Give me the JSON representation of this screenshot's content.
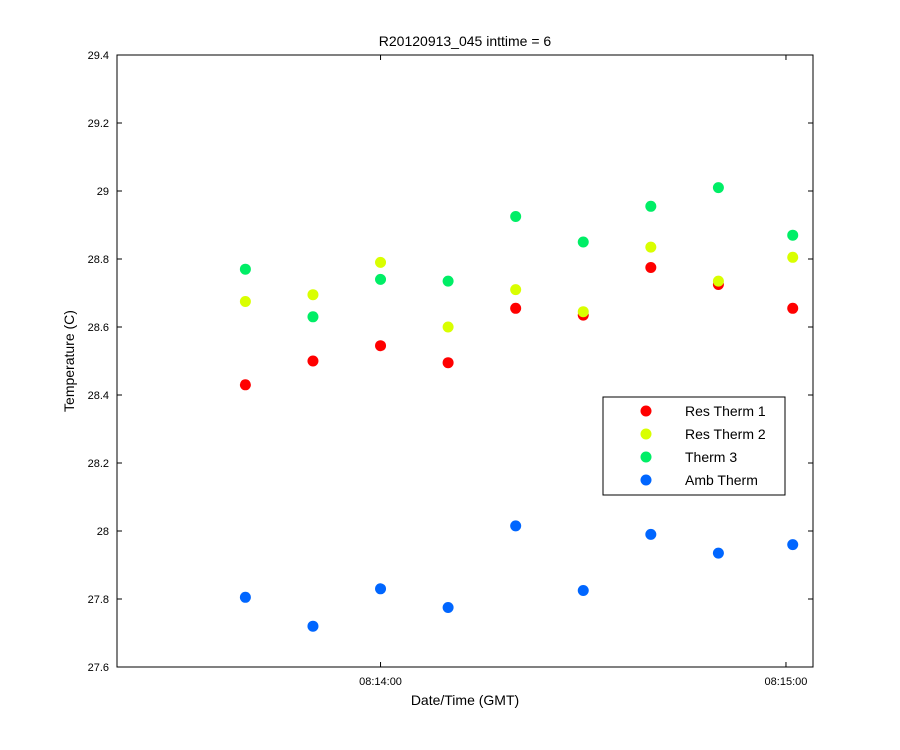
{
  "chart_data": {
    "type": "scatter",
    "title": "R20120913_045 inttime = 6",
    "xlabel": "Date/Time (GMT)",
    "ylabel": "Temperature (C)",
    "x_tick_labels": [
      "08:14:00",
      "08:15:00"
    ],
    "y_tick_labels": [
      "27.6",
      "27.8",
      "28",
      "28.2",
      "28.4",
      "28.6",
      "28.8",
      "29",
      "29.2",
      "29.4"
    ],
    "x_unit": "time (GMT)",
    "xlim": [
      "08:13:21",
      "08:15:04"
    ],
    "ylim": [
      27.6,
      29.4
    ],
    "x": [
      "08:13:40",
      "08:13:50",
      "08:14:00",
      "08:14:10",
      "08:14:20",
      "08:14:30",
      "08:14:40",
      "08:14:50",
      "08:15:01"
    ],
    "series": [
      {
        "name": "Res Therm 1",
        "color": "#ff0000",
        "values": [
          28.43,
          28.5,
          28.545,
          28.495,
          28.655,
          28.635,
          28.775,
          28.725,
          28.655
        ]
      },
      {
        "name": "Res Therm 2",
        "color": "#d9ff00",
        "values": [
          28.675,
          28.695,
          28.79,
          28.6,
          28.71,
          28.645,
          28.835,
          28.735,
          28.805
        ]
      },
      {
        "name": "Therm 3",
        "color": "#00ee66",
        "values": [
          28.77,
          28.63,
          28.74,
          28.735,
          28.925,
          28.85,
          28.955,
          29.01,
          28.87
        ]
      },
      {
        "name": "Amb Therm",
        "color": "#0066ff",
        "values": [
          27.805,
          27.72,
          27.83,
          27.775,
          28.015,
          27.825,
          27.99,
          27.935,
          27.96
        ]
      }
    ],
    "legend_position": "right-middle",
    "grid": false
  }
}
